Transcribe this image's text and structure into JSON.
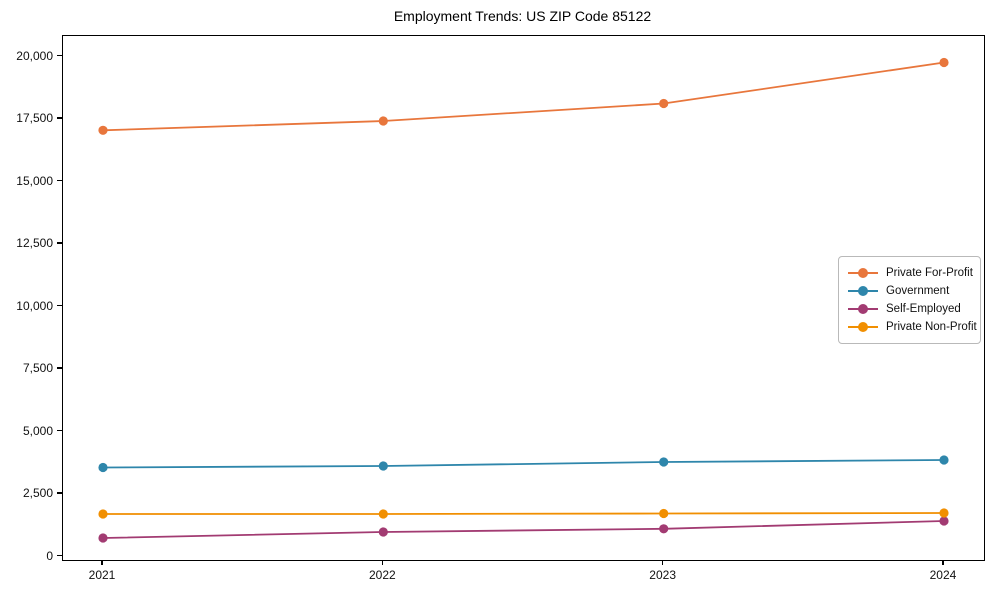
{
  "chart_data": {
    "type": "line",
    "title": "Employment Trends: US ZIP Code 85122",
    "x": [
      "2021",
      "2022",
      "2023",
      "2024"
    ],
    "series": [
      {
        "name": "Private For-Profit",
        "color": "#e8763c",
        "values": [
          17050,
          17420,
          18120,
          19760
        ]
      },
      {
        "name": "Government",
        "color": "#2e86ab",
        "values": [
          3560,
          3620,
          3780,
          3860
        ]
      },
      {
        "name": "Self-Employed",
        "color": "#a23b72",
        "values": [
          740,
          980,
          1110,
          1420
        ]
      },
      {
        "name": "Private Non-Profit",
        "color": "#f18f01",
        "values": [
          1700,
          1700,
          1720,
          1740
        ]
      }
    ],
    "xlabel": "",
    "ylabel": "",
    "ylim": [
      0,
      20000
    ],
    "yticks": [
      0,
      2500,
      5000,
      7500,
      10000,
      12500,
      15000,
      17500,
      20000
    ],
    "ytick_labels": [
      "0",
      "2,500",
      "5,000",
      "7,500",
      "10,000",
      "12,500",
      "15,000",
      "17,500",
      "20,000"
    ],
    "grid": false,
    "legend_position": "center-right",
    "marker": "circle"
  }
}
